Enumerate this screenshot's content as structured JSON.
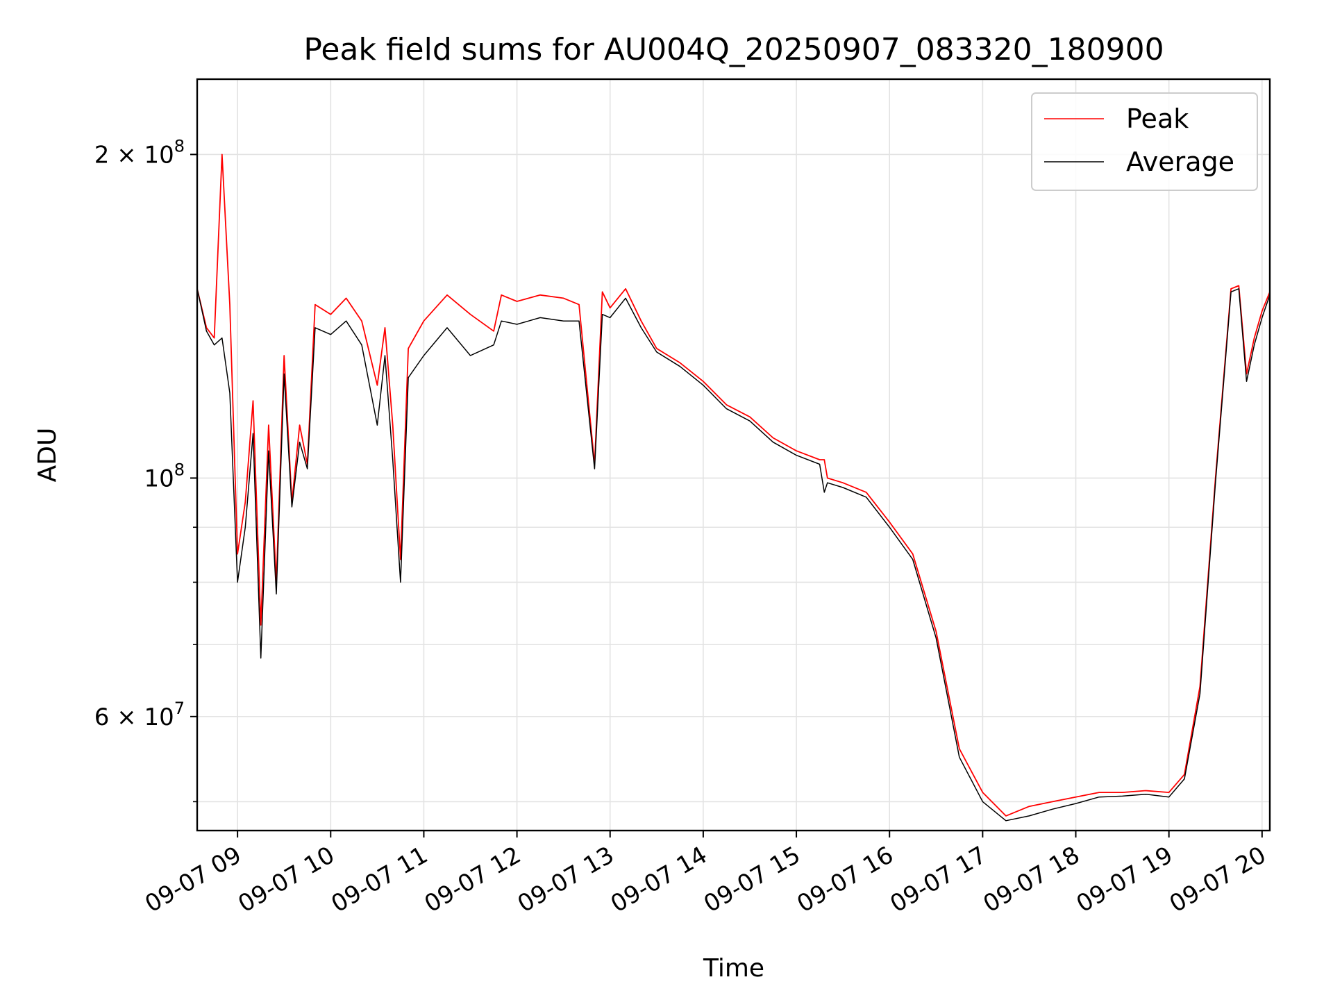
{
  "chart_data": {
    "type": "line",
    "title": "Peak field sums for AU004Q_20250907_083320_180900",
    "xlabel": "Time",
    "ylabel": "ADU",
    "yscale": "log",
    "grid": true,
    "legend_position": "top-right",
    "xlim": [
      "2025-09-07 08:34",
      "2025-09-07 20:05"
    ],
    "ylim": [
      47000000,
      235000000
    ],
    "x_ticks": [
      "09-07 09",
      "09-07 10",
      "09-07 11",
      "09-07 12",
      "09-07 13",
      "09-07 14",
      "09-07 15",
      "09-07 16",
      "09-07 17",
      "09-07 18",
      "09-07 19",
      "09-07 20"
    ],
    "y_ticks_major": [
      {
        "value": 60000000,
        "mantissa": "6",
        "exp": "7"
      },
      {
        "value": 100000000,
        "mantissa": "",
        "exp": "8"
      },
      {
        "value": 200000000,
        "mantissa": "2",
        "exp": "8"
      }
    ],
    "y_ticks_minor": [
      50000000,
      70000000,
      80000000,
      90000000
    ],
    "x": [
      "08:34",
      "08:40",
      "08:45",
      "08:50",
      "08:55",
      "09:00",
      "09:05",
      "09:10",
      "09:15",
      "09:20",
      "09:25",
      "09:30",
      "09:35",
      "09:40",
      "09:45",
      "09:50",
      "10:00",
      "10:10",
      "10:20",
      "10:30",
      "10:35",
      "10:40",
      "10:45",
      "10:50",
      "11:00",
      "11:15",
      "11:30",
      "11:45",
      "11:50",
      "12:00",
      "12:15",
      "12:30",
      "12:40",
      "12:50",
      "12:55",
      "13:00",
      "13:10",
      "13:20",
      "13:30",
      "13:45",
      "14:00",
      "14:15",
      "14:30",
      "14:45",
      "15:00",
      "15:15",
      "15:18",
      "15:20",
      "15:30",
      "15:45",
      "16:00",
      "16:15",
      "16:30",
      "16:45",
      "17:00",
      "17:15",
      "17:30",
      "17:45",
      "18:00",
      "18:15",
      "18:30",
      "18:45",
      "19:00",
      "19:10",
      "19:20",
      "19:30",
      "19:40",
      "19:45",
      "19:50",
      "19:55",
      "20:00",
      "20:05"
    ],
    "series": [
      {
        "name": "Peak",
        "color": "#ff0000",
        "values": [
          150000000,
          138000000,
          135000000,
          200000000,
          145000000,
          85000000,
          95000000,
          118000000,
          73000000,
          112000000,
          80000000,
          130000000,
          95000000,
          112000000,
          103000000,
          145000000,
          142000000,
          147000000,
          140000000,
          122000000,
          138000000,
          112000000,
          84000000,
          132000000,
          140000000,
          148000000,
          142000000,
          137000000,
          148000000,
          146000000,
          148000000,
          147000000,
          145000000,
          103000000,
          149000000,
          144000000,
          150000000,
          140000000,
          132000000,
          128000000,
          123000000,
          117000000,
          114000000,
          109000000,
          106000000,
          104000000,
          104000000,
          100000000,
          99000000,
          97000000,
          91000000,
          85000000,
          72000000,
          56000000,
          51000000,
          48500000,
          49500000,
          50000000,
          50500000,
          51000000,
          51000000,
          51200000,
          51000000,
          53000000,
          64000000,
          100000000,
          150000000,
          151000000,
          125000000,
          135000000,
          143000000,
          149000000
        ]
      },
      {
        "name": "Average",
        "color": "#000000",
        "values": [
          150000000,
          137000000,
          133000000,
          135000000,
          120000000,
          80000000,
          90000000,
          110000000,
          68000000,
          106000000,
          78000000,
          125000000,
          94000000,
          108000000,
          102000000,
          138000000,
          136000000,
          140000000,
          133000000,
          112000000,
          130000000,
          104000000,
          80000000,
          124000000,
          130000000,
          138000000,
          130000000,
          133000000,
          140000000,
          139000000,
          141000000,
          140000000,
          140000000,
          102000000,
          142000000,
          141000000,
          147000000,
          138000000,
          131000000,
          127000000,
          122000000,
          116000000,
          113000000,
          108000000,
          105000000,
          103000000,
          97000000,
          99000000,
          98000000,
          96000000,
          90000000,
          84000000,
          71000000,
          55000000,
          50000000,
          48000000,
          48500000,
          49200000,
          49800000,
          50500000,
          50600000,
          50800000,
          50500000,
          52500000,
          63000000,
          99000000,
          149000000,
          150000000,
          123000000,
          133000000,
          141000000,
          148000000
        ]
      }
    ]
  }
}
